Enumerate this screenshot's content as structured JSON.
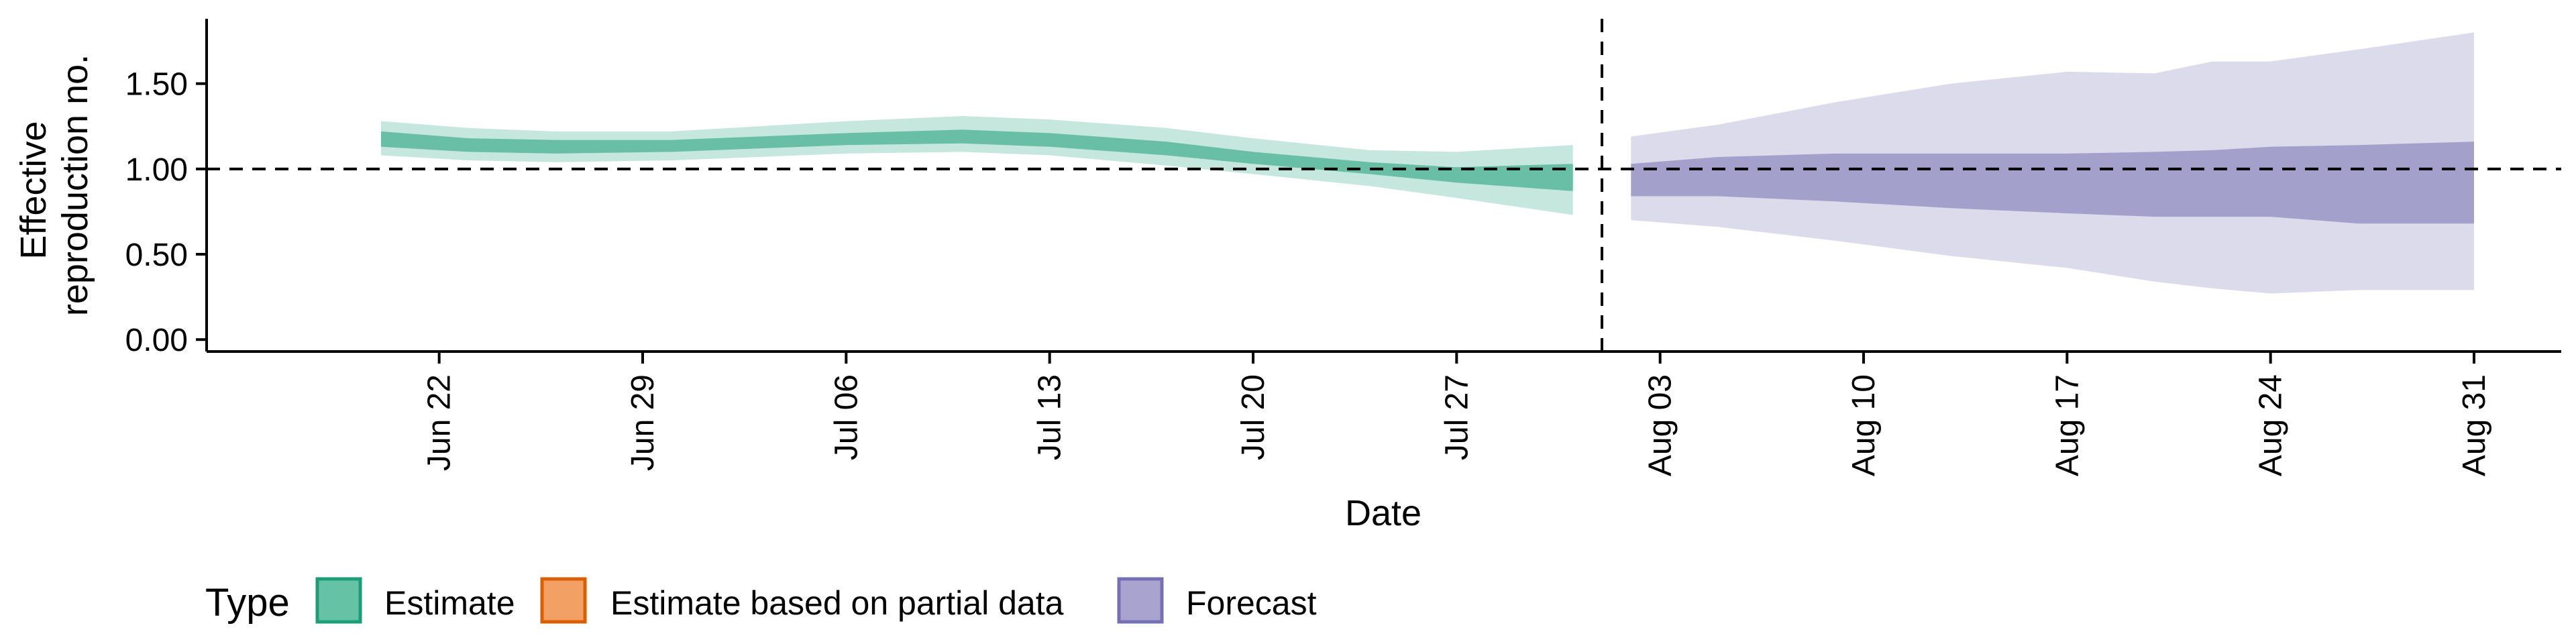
{
  "chart_data": {
    "type": "area",
    "title": "",
    "xlabel": "Date",
    "ylabel_lines": [
      "Effective",
      "reproduction no."
    ],
    "x_range": [
      "2020-06-14",
      "2020-09-03"
    ],
    "ylim": [
      -0.07,
      1.88
    ],
    "x_ticks": [
      {
        "date": "2020-06-22",
        "label": "Jun 22"
      },
      {
        "date": "2020-06-29",
        "label": "Jun 29"
      },
      {
        "date": "2020-07-06",
        "label": "Jul 06"
      },
      {
        "date": "2020-07-13",
        "label": "Jul 13"
      },
      {
        "date": "2020-07-20",
        "label": "Jul 20"
      },
      {
        "date": "2020-07-27",
        "label": "Jul 27"
      },
      {
        "date": "2020-08-03",
        "label": "Aug 03"
      },
      {
        "date": "2020-08-10",
        "label": "Aug 10"
      },
      {
        "date": "2020-08-17",
        "label": "Aug 17"
      },
      {
        "date": "2020-08-24",
        "label": "Aug 24"
      },
      {
        "date": "2020-08-31",
        "label": "Aug 31"
      }
    ],
    "y_ticks": [
      {
        "value": 0.0,
        "label": "0.00"
      },
      {
        "value": 0.5,
        "label": "0.50"
      },
      {
        "value": 1.0,
        "label": "1.00"
      },
      {
        "value": 1.5,
        "label": "1.50"
      }
    ],
    "reference_line_y": 1.0,
    "vertical_line_date": "2020-08-01",
    "grid": false,
    "legend": {
      "title": "Type",
      "placement": "bottom-left",
      "items": [
        {
          "label": "Estimate",
          "fill": "#66C2A5",
          "stroke": "#1B9E77"
        },
        {
          "label": "Estimate based on partial data",
          "fill": "#F2A064",
          "stroke": "#D95F02"
        },
        {
          "label": "Forecast",
          "fill": "#A9A3D0",
          "stroke": "#7570B3"
        }
      ]
    },
    "series": [
      {
        "name": "Estimate",
        "color": "#1B9E77",
        "outer_opacity": 0.25,
        "inner_opacity": 0.55,
        "points": [
          {
            "date": "2020-06-20",
            "lo90": 1.08,
            "lo50": 1.13,
            "hi50": 1.22,
            "hi90": 1.28
          },
          {
            "date": "2020-06-23",
            "lo90": 1.05,
            "lo50": 1.1,
            "hi50": 1.18,
            "hi90": 1.24
          },
          {
            "date": "2020-06-26",
            "lo90": 1.04,
            "lo50": 1.09,
            "hi50": 1.17,
            "hi90": 1.22
          },
          {
            "date": "2020-06-30",
            "lo90": 1.05,
            "lo50": 1.1,
            "hi50": 1.17,
            "hi90": 1.22
          },
          {
            "date": "2020-07-03",
            "lo90": 1.07,
            "lo50": 1.12,
            "hi50": 1.19,
            "hi90": 1.25
          },
          {
            "date": "2020-07-06",
            "lo90": 1.09,
            "lo50": 1.14,
            "hi50": 1.21,
            "hi90": 1.28
          },
          {
            "date": "2020-07-10",
            "lo90": 1.1,
            "lo50": 1.15,
            "hi50": 1.23,
            "hi90": 1.31
          },
          {
            "date": "2020-07-13",
            "lo90": 1.08,
            "lo50": 1.13,
            "hi50": 1.21,
            "hi90": 1.29
          },
          {
            "date": "2020-07-17",
            "lo90": 1.02,
            "lo50": 1.08,
            "hi50": 1.16,
            "hi90": 1.24
          },
          {
            "date": "2020-07-20",
            "lo90": 0.97,
            "lo50": 1.03,
            "hi50": 1.1,
            "hi90": 1.18
          },
          {
            "date": "2020-07-24",
            "lo90": 0.9,
            "lo50": 0.97,
            "hi50": 1.04,
            "hi90": 1.11
          },
          {
            "date": "2020-07-27",
            "lo90": 0.83,
            "lo50": 0.92,
            "hi50": 1.01,
            "hi90": 1.1
          },
          {
            "date": "2020-07-31",
            "lo90": 0.73,
            "lo50": 0.87,
            "hi50": 1.03,
            "hi90": 1.14
          }
        ]
      },
      {
        "name": "Forecast",
        "color": "#7570B3",
        "outer_opacity": 0.25,
        "inner_opacity": 0.55,
        "points": [
          {
            "date": "2020-08-02",
            "lo90": 0.7,
            "lo50": 0.84,
            "hi50": 1.03,
            "hi90": 1.19
          },
          {
            "date": "2020-08-05",
            "lo90": 0.66,
            "lo50": 0.84,
            "hi50": 1.07,
            "hi90": 1.26
          },
          {
            "date": "2020-08-09",
            "lo90": 0.58,
            "lo50": 0.81,
            "hi50": 1.09,
            "hi90": 1.39
          },
          {
            "date": "2020-08-13",
            "lo90": 0.49,
            "lo50": 0.77,
            "hi50": 1.09,
            "hi90": 1.5
          },
          {
            "date": "2020-08-17",
            "lo90": 0.42,
            "lo50": 0.74,
            "hi50": 1.09,
            "hi90": 1.57
          },
          {
            "date": "2020-08-20",
            "lo90": 0.34,
            "lo50": 0.72,
            "hi50": 1.1,
            "hi90": 1.56
          },
          {
            "date": "2020-08-22",
            "lo90": 0.3,
            "lo50": 0.72,
            "hi50": 1.11,
            "hi90": 1.63
          },
          {
            "date": "2020-08-24",
            "lo90": 0.27,
            "lo50": 0.72,
            "hi50": 1.13,
            "hi90": 1.63
          },
          {
            "date": "2020-08-27",
            "lo90": 0.29,
            "lo50": 0.68,
            "hi50": 1.14,
            "hi90": 1.7
          },
          {
            "date": "2020-08-31",
            "lo90": 0.29,
            "lo50": 0.68,
            "hi50": 1.16,
            "hi90": 1.8
          }
        ]
      }
    ]
  }
}
